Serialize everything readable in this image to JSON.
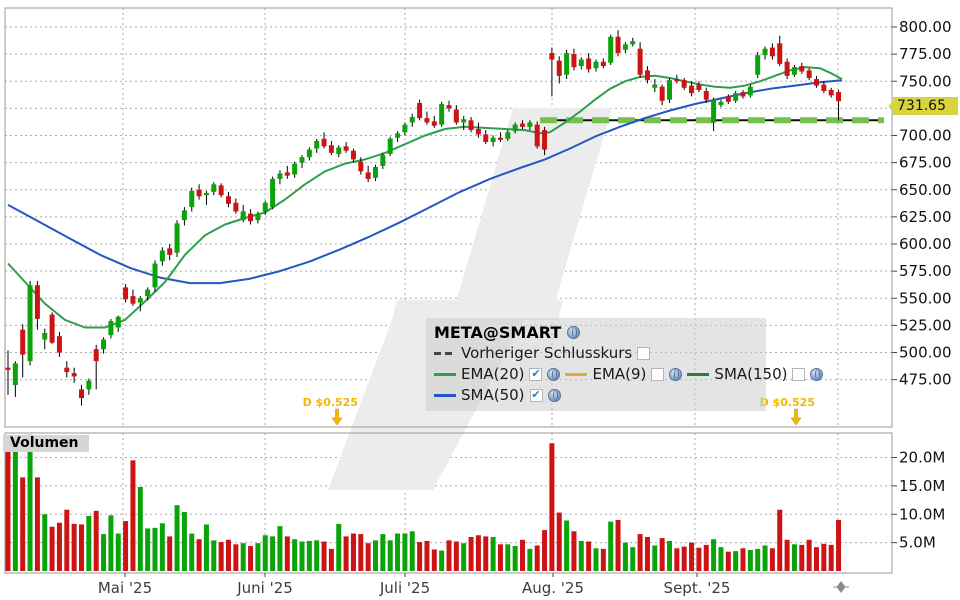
{
  "chart_data": {
    "type": "candlestick+volume",
    "symbol": "META@SMART",
    "last_price_label": "731.65",
    "price_ticks": [
      800,
      775,
      750,
      725,
      700,
      675,
      650,
      625,
      600,
      575,
      550,
      525,
      500,
      475
    ],
    "price_tick_labels": [
      "800.00",
      "775.00",
      "750.00",
      "725.00",
      "700.00",
      "675.00",
      "650.00",
      "625.00",
      "600.00",
      "575.00",
      "550.00",
      "525.00",
      "500.00",
      "475.00"
    ],
    "volume_ticks": [
      20,
      15,
      10,
      5
    ],
    "volume_tick_labels": [
      "20.0M",
      "15.0M",
      "10.0M",
      "5.0M"
    ],
    "months": [
      {
        "label": "Mai '25",
        "x": 125
      },
      {
        "label": "Juni '25",
        "x": 265
      },
      {
        "label": "Juli '25",
        "x": 405
      },
      {
        "label": "Aug. '25",
        "x": 553
      },
      {
        "label": "Sept. '25",
        "x": 697
      }
    ],
    "vgrid_x": [
      123,
      265,
      405,
      552,
      695,
      838
    ],
    "previous_close": {
      "price": 714,
      "x_start": 540,
      "x_end": 884
    },
    "dividends": [
      {
        "label": "D $0.525",
        "text_right_x": 358,
        "arrow_x": 337
      },
      {
        "label": "D $0.525",
        "text_right_x": 815,
        "arrow_x": 796
      }
    ],
    "ylim": [
      475,
      800
    ],
    "volume_ylim": [
      0,
      24
    ],
    "candles": [
      [
        486,
        502,
        461,
        484,
        23.5
      ],
      [
        470,
        492,
        459,
        490,
        21.0
      ],
      [
        521,
        526,
        477,
        498,
        16.5
      ],
      [
        492,
        566,
        488,
        562,
        24.0
      ],
      [
        562,
        566,
        521,
        531,
        16.5
      ],
      [
        512,
        522,
        503,
        518,
        10.0
      ],
      [
        535,
        537,
        508,
        509,
        7.8
      ],
      [
        515,
        519,
        496,
        500,
        8.5
      ],
      [
        486,
        492,
        477,
        482,
        10.8
      ],
      [
        481,
        486,
        472,
        478,
        8.3
      ],
      [
        466,
        470,
        451,
        458,
        8.2
      ],
      [
        466,
        476,
        461,
        474,
        9.7
      ],
      [
        503,
        507,
        466,
        492,
        10.6
      ],
      [
        503,
        514,
        499,
        512,
        6.5
      ],
      [
        516,
        531,
        513,
        529,
        9.8
      ],
      [
        523,
        534,
        519,
        533,
        6.6
      ],
      [
        560,
        563,
        546,
        549,
        8.8
      ],
      [
        552,
        558,
        543,
        545,
        19.5
      ],
      [
        546,
        552,
        538,
        550,
        14.8
      ],
      [
        552,
        560,
        548,
        558,
        7.5
      ],
      [
        560,
        585,
        556,
        582,
        7.6
      ],
      [
        584,
        597,
        580,
        594,
        8.4
      ],
      [
        596,
        600,
        585,
        590,
        6.1
      ],
      [
        592,
        622,
        588,
        619,
        11.6
      ],
      [
        622,
        634,
        617,
        631,
        10.4
      ],
      [
        634,
        652,
        630,
        649,
        6.6
      ],
      [
        650,
        655,
        641,
        644,
        5.6
      ],
      [
        645,
        649,
        636,
        647,
        8.2
      ],
      [
        648,
        657,
        645,
        655,
        5.4
      ],
      [
        654,
        656,
        643,
        645,
        5.1
      ],
      [
        644,
        648,
        634,
        637,
        5.5
      ],
      [
        638,
        642,
        628,
        630,
        4.7
      ],
      [
        622,
        636,
        620,
        630,
        4.9
      ],
      [
        628,
        632,
        618,
        621,
        4.4
      ],
      [
        622,
        630,
        619,
        628,
        4.9
      ],
      [
        630,
        640,
        627,
        638,
        6.3
      ],
      [
        634,
        662,
        632,
        660,
        6.1
      ],
      [
        660,
        668,
        655,
        665,
        7.9
      ],
      [
        666,
        672,
        660,
        663,
        6.1
      ],
      [
        664,
        676,
        661,
        674,
        5.6
      ],
      [
        675,
        682,
        670,
        680,
        5.2
      ],
      [
        680,
        689,
        677,
        687,
        5.3
      ],
      [
        688,
        697,
        684,
        695,
        5.4
      ],
      [
        697,
        703,
        688,
        690,
        5.2
      ],
      [
        691,
        695,
        682,
        684,
        3.9
      ],
      [
        683,
        691,
        680,
        689,
        8.3
      ],
      [
        690,
        694,
        684,
        686,
        6.1
      ],
      [
        686,
        688,
        675,
        678,
        6.6
      ],
      [
        676,
        680,
        664,
        667,
        6.5
      ],
      [
        666,
        672,
        657,
        660,
        4.9
      ],
      [
        661,
        673,
        658,
        671,
        5.4
      ],
      [
        672,
        684,
        669,
        682,
        6.5
      ],
      [
        683,
        699,
        681,
        697,
        5.4
      ],
      [
        698,
        704,
        694,
        702,
        6.6
      ],
      [
        703,
        712,
        700,
        710,
        6.6
      ],
      [
        712,
        720,
        708,
        717,
        7.0
      ],
      [
        730,
        733,
        714,
        716,
        5.1
      ],
      [
        716,
        722,
        710,
        712,
        5.3
      ],
      [
        713,
        718,
        707,
        709,
        3.8
      ],
      [
        710,
        731,
        708,
        729,
        3.6
      ],
      [
        728,
        732,
        722,
        725,
        5.4
      ],
      [
        724,
        728,
        710,
        712,
        5.2
      ],
      [
        712,
        718,
        705,
        715,
        4.9
      ],
      [
        714,
        717,
        703,
        705,
        6.0
      ],
      [
        706,
        712,
        698,
        701,
        6.3
      ],
      [
        701,
        705,
        692,
        694,
        6.1
      ],
      [
        694,
        700,
        690,
        698,
        6.0
      ],
      [
        698,
        703,
        694,
        696,
        4.7
      ],
      [
        697,
        705,
        695,
        703,
        4.7
      ],
      [
        704,
        712,
        702,
        710,
        4.4
      ],
      [
        711,
        714,
        706,
        708,
        5.5
      ],
      [
        708,
        714,
        705,
        712,
        3.9
      ],
      [
        710,
        713,
        688,
        690,
        4.5
      ],
      [
        705,
        708,
        682,
        687,
        7.2
      ],
      [
        776,
        781,
        736,
        770,
        22.5
      ],
      [
        769,
        773,
        748,
        755,
        10.3
      ],
      [
        756,
        779,
        752,
        776,
        8.9
      ],
      [
        775,
        780,
        760,
        763,
        7.0
      ],
      [
        764,
        772,
        761,
        770,
        5.3
      ],
      [
        771,
        776,
        758,
        761,
        5.2
      ],
      [
        762,
        770,
        759,
        768,
        4.0
      ],
      [
        768,
        771,
        762,
        764,
        3.9
      ],
      [
        767,
        793,
        765,
        791,
        8.7
      ],
      [
        791,
        797,
        773,
        776,
        9.0
      ],
      [
        779,
        786,
        776,
        784,
        5.0
      ],
      [
        784,
        790,
        782,
        787,
        4.2
      ],
      [
        780,
        786,
        753,
        756,
        6.5
      ],
      [
        760,
        764,
        748,
        751,
        6.0
      ],
      [
        744,
        752,
        740,
        747,
        4.5
      ],
      [
        745,
        747,
        728,
        732,
        5.8
      ],
      [
        733,
        753,
        730,
        751,
        5.3
      ],
      [
        752,
        756,
        748,
        750,
        4.0
      ],
      [
        751,
        753,
        742,
        744,
        4.3
      ],
      [
        746,
        750,
        736,
        739,
        5.0
      ],
      [
        747,
        750,
        740,
        742,
        4.1
      ],
      [
        741,
        744,
        730,
        733,
        4.6
      ],
      [
        712,
        735,
        704,
        733,
        5.6
      ],
      [
        728,
        733,
        726,
        731,
        4.2
      ],
      [
        736,
        738,
        729,
        731,
        3.4
      ],
      [
        732,
        741,
        730,
        739,
        3.5
      ],
      [
        740,
        742,
        734,
        736,
        4.0
      ],
      [
        737,
        747,
        735,
        745,
        3.7
      ],
      [
        756,
        777,
        753,
        774,
        3.9
      ],
      [
        774,
        782,
        770,
        780,
        4.5
      ],
      [
        781,
        785,
        770,
        773,
        4.0
      ],
      [
        785,
        792,
        764,
        766,
        10.8
      ],
      [
        768,
        771,
        752,
        755,
        5.5
      ],
      [
        756,
        765,
        754,
        763,
        4.7
      ],
      [
        764,
        767,
        757,
        759,
        4.6
      ],
      [
        760,
        762,
        751,
        753,
        5.5
      ],
      [
        752,
        755,
        744,
        746,
        4.2
      ],
      [
        747,
        750,
        739,
        741,
        4.8
      ],
      [
        742,
        744,
        735,
        737,
        4.6
      ],
      [
        740,
        742,
        714,
        731.65,
        9.0
      ]
    ],
    "ema20": [
      [
        8,
        582
      ],
      [
        25,
        565
      ],
      [
        45,
        545
      ],
      [
        65,
        530
      ],
      [
        85,
        523
      ],
      [
        105,
        523
      ],
      [
        125,
        530
      ],
      [
        145,
        547
      ],
      [
        165,
        565
      ],
      [
        185,
        590
      ],
      [
        205,
        608
      ],
      [
        225,
        618
      ],
      [
        245,
        624
      ],
      [
        265,
        629
      ],
      [
        285,
        641
      ],
      [
        305,
        655
      ],
      [
        325,
        667
      ],
      [
        345,
        674
      ],
      [
        365,
        678
      ],
      [
        385,
        684
      ],
      [
        405,
        692
      ],
      [
        425,
        700
      ],
      [
        445,
        706
      ],
      [
        465,
        708
      ],
      [
        485,
        707
      ],
      [
        505,
        706
      ],
      [
        525,
        705
      ],
      [
        540,
        702
      ],
      [
        550,
        703
      ],
      [
        565,
        712
      ],
      [
        580,
        722
      ],
      [
        595,
        733
      ],
      [
        610,
        743
      ],
      [
        625,
        750
      ],
      [
        640,
        754
      ],
      [
        655,
        755
      ],
      [
        670,
        753
      ],
      [
        685,
        750
      ],
      [
        700,
        747
      ],
      [
        715,
        745
      ],
      [
        730,
        744
      ],
      [
        745,
        746
      ],
      [
        760,
        750
      ],
      [
        775,
        755
      ],
      [
        790,
        760
      ],
      [
        805,
        763
      ],
      [
        820,
        762
      ],
      [
        832,
        757
      ],
      [
        842,
        752
      ]
    ],
    "sma50": [
      [
        8,
        636
      ],
      [
        40,
        620
      ],
      [
        70,
        605
      ],
      [
        100,
        590
      ],
      [
        130,
        578
      ],
      [
        160,
        569
      ],
      [
        190,
        564
      ],
      [
        220,
        564
      ],
      [
        250,
        568
      ],
      [
        280,
        575
      ],
      [
        310,
        584
      ],
      [
        340,
        595
      ],
      [
        370,
        607
      ],
      [
        400,
        620
      ],
      [
        430,
        634
      ],
      [
        460,
        648
      ],
      [
        490,
        660
      ],
      [
        520,
        670
      ],
      [
        545,
        678
      ],
      [
        570,
        688
      ],
      [
        595,
        699
      ],
      [
        620,
        708
      ],
      [
        645,
        716
      ],
      [
        670,
        723
      ],
      [
        695,
        729
      ],
      [
        720,
        734
      ],
      [
        745,
        739
      ],
      [
        770,
        743
      ],
      [
        795,
        746
      ],
      [
        820,
        749
      ],
      [
        842,
        751
      ]
    ],
    "colors": {
      "up": "#0aa30a",
      "down": "#cc1414",
      "ema20": "#2e9e4e",
      "ema9": "#e8a93c",
      "sma150": "#2f7d2f",
      "sma50": "#2456c8",
      "prev_close_dash": "#76c04f",
      "grid": "#ababab",
      "border": "#9a9a9a",
      "watermark": "#ececec",
      "price_tag_bg": "#d9d43e",
      "dividend": "#f2b705"
    }
  },
  "legend": {
    "title": "META@SMART",
    "prev_close_label": "Vorheriger Schlusskurs",
    "ema20_label": "EMA(20)",
    "ema9_label": "EMA(9)",
    "sma150_label": "SMA(150)",
    "sma50_label": "SMA(50)",
    "check": "✔"
  },
  "volume_panel": {
    "label": "Volumen"
  }
}
